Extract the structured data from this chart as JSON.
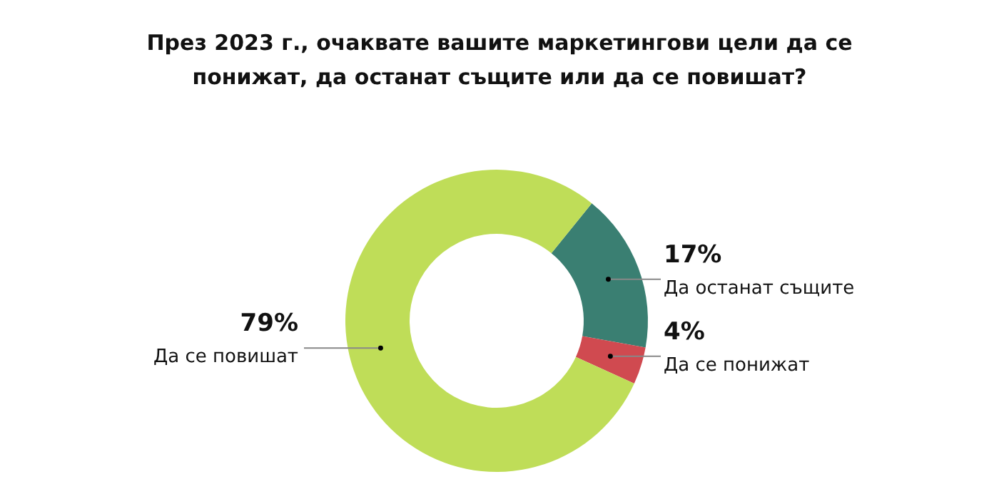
{
  "chart_data": {
    "type": "donut",
    "title": "През 2023 г., очаквате вашите маркетингови цели да се понижат, да останат същите или да се повишат?",
    "categories": [
      "Да останат същите",
      "Да се понижат",
      "Да се повишат"
    ],
    "values": [
      17,
      4,
      79
    ],
    "colors": [
      "#3a7f72",
      "#d04a50",
      "#bfdd58"
    ],
    "value_labels": [
      "17%",
      "4%",
      "79%"
    ]
  }
}
